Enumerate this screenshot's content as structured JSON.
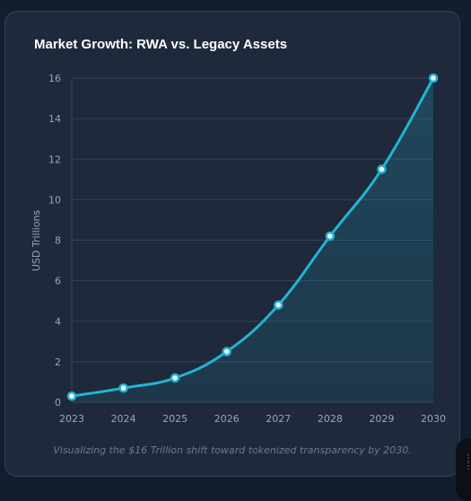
{
  "chart_data": {
    "type": "line",
    "title": "Market Growth: RWA vs. Legacy Assets",
    "caption": "Visualizing the $16 Trillion shift toward tokenized transparency by 2030.",
    "ylabel": "USD Trillions",
    "xlabel": "",
    "x": [
      "2023",
      "2024",
      "2025",
      "2026",
      "2027",
      "2028",
      "2029",
      "2030"
    ],
    "series": [
      {
        "values": [
          0.3,
          0.7,
          1.2,
          2.5,
          4.8,
          8.2,
          11.5,
          16
        ]
      }
    ],
    "ylim": [
      0,
      16
    ],
    "yticks": [
      0,
      2,
      4,
      6,
      8,
      10,
      12,
      14,
      16
    ],
    "grid": true,
    "area_fill": true,
    "colors": {
      "line": "#22b4d3",
      "fill": "#1f4a5e",
      "grid": "#34425a",
      "point_fill": "#ffffff"
    }
  }
}
